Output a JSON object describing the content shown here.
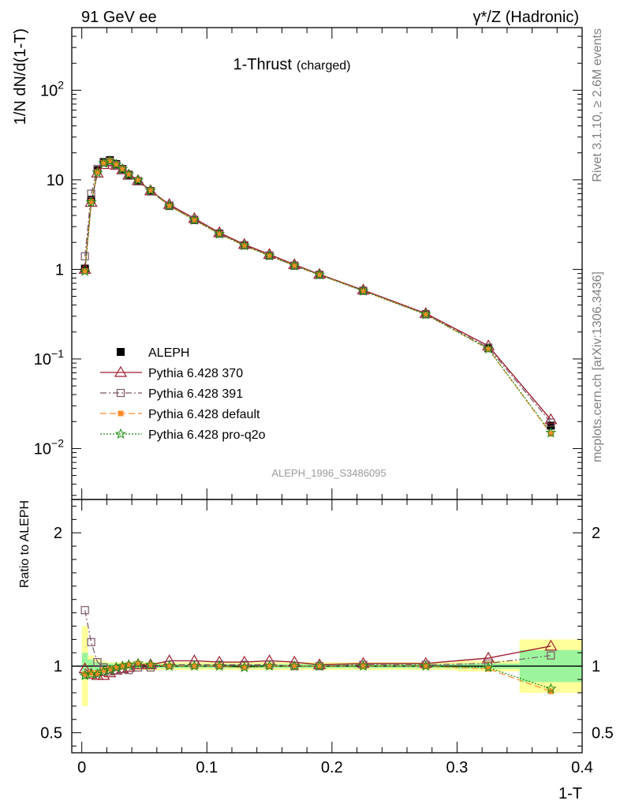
{
  "header": {
    "energy_label": "91 GeV ee",
    "process_label": "γ*/Z (Hadronic)"
  },
  "plot_title": {
    "main": "1-Thrust",
    "sub": "(charged)"
  },
  "side_labels": {
    "rivet": "Rivet 3.1.10, ≥ 2.6M events",
    "site": "mcplots.cern.ch [arXiv:1306.3436]"
  },
  "analysis_id": "ALEPH_1996_S3486095",
  "colors": {
    "data": "#000000",
    "p370": "#9e1f2f",
    "p391": "#7a5566",
    "default": "#ff8c2a",
    "proq2o": "#1e8c10",
    "band_inner": "#9cf59c",
    "band_outer": "#ffff9c"
  },
  "chart_data": [
    {
      "type": "line",
      "panel": "main",
      "xlabel": "1-T",
      "ylabel": "1/N dN/d(1-T)",
      "yscale": "log",
      "xlim": [
        -0.008,
        0.4
      ],
      "ylim": [
        0.0027,
        500
      ],
      "ytick_labels": [
        "10^-2",
        "10^-1",
        "1",
        "10",
        "10^2"
      ],
      "legend_position": "lower-left",
      "x": [
        0.0025,
        0.0075,
        0.0125,
        0.0175,
        0.0225,
        0.0275,
        0.0325,
        0.0375,
        0.045,
        0.055,
        0.07,
        0.09,
        0.11,
        0.13,
        0.15,
        0.17,
        0.19,
        0.225,
        0.275,
        0.325,
        0.375
      ],
      "series": [
        {
          "name": "ALEPH",
          "key": "data",
          "marker": "square",
          "values": [
            1.02,
            6.0,
            12.8,
            15.9,
            16.6,
            15.0,
            13.2,
            11.4,
            9.7,
            7.5,
            5.1,
            3.55,
            2.5,
            1.85,
            1.42,
            1.1,
            0.87,
            0.575,
            0.315,
            0.132,
            0.018
          ]
        },
        {
          "name": "Pythia 6.428 370",
          "key": "p370",
          "marker": "triangle",
          "values": [
            1.0,
            5.6,
            11.9,
            14.8,
            15.8,
            14.5,
            12.9,
            11.3,
            9.8,
            7.55,
            5.3,
            3.7,
            2.57,
            1.9,
            1.47,
            1.13,
            0.88,
            0.588,
            0.322,
            0.14,
            0.021
          ]
        },
        {
          "name": "Pythia 6.428 391",
          "key": "p391",
          "marker": "open-square",
          "values": [
            1.4,
            7.0,
            13.2,
            15.8,
            16.0,
            14.6,
            12.9,
            11.1,
            9.6,
            7.4,
            5.15,
            3.58,
            2.52,
            1.86,
            1.43,
            1.1,
            0.87,
            0.578,
            0.317,
            0.134,
            0.0195
          ]
        },
        {
          "name": "Pythia 6.428 default",
          "key": "default",
          "marker": "filled-square",
          "values": [
            0.96,
            5.7,
            12.2,
            15.5,
            16.3,
            14.9,
            13.2,
            11.5,
            9.9,
            7.6,
            5.12,
            3.56,
            2.49,
            1.84,
            1.42,
            1.1,
            0.87,
            0.574,
            0.314,
            0.129,
            0.0146
          ]
        },
        {
          "name": "Pythia 6.428 pro-q2o",
          "key": "proq2o",
          "marker": "star",
          "values": [
            0.95,
            5.6,
            12.0,
            15.3,
            16.1,
            14.8,
            13.2,
            11.5,
            9.9,
            7.6,
            5.12,
            3.55,
            2.49,
            1.84,
            1.42,
            1.1,
            0.87,
            0.574,
            0.314,
            0.13,
            0.015
          ]
        }
      ]
    },
    {
      "type": "line",
      "panel": "ratio",
      "xlabel": "1-T",
      "ylabel": "Ratio to ALEPH",
      "xlim": [
        -0.008,
        0.4
      ],
      "ylim": [
        0.35,
        2.25
      ],
      "ytick_labels": [
        "0.5",
        "1",
        "2"
      ],
      "xtick_labels": [
        "0",
        "0.1",
        "0.2",
        "0.3",
        "0.4"
      ],
      "x": [
        0.0025,
        0.0075,
        0.0125,
        0.0175,
        0.0225,
        0.0275,
        0.0325,
        0.0375,
        0.045,
        0.055,
        0.07,
        0.09,
        0.11,
        0.13,
        0.15,
        0.17,
        0.19,
        0.225,
        0.275,
        0.325,
        0.375
      ],
      "bands": {
        "bin_edges": [
          0,
          0.005,
          0.01,
          0.015,
          0.02,
          0.025,
          0.03,
          0.035,
          0.04,
          0.05,
          0.06,
          0.08,
          0.1,
          0.12,
          0.14,
          0.16,
          0.18,
          0.2,
          0.25,
          0.3,
          0.35,
          0.4
        ],
        "inner_halfwidth": [
          0.1,
          0.05,
          0.03,
          0.025,
          0.02,
          0.02,
          0.02,
          0.02,
          0.015,
          0.015,
          0.015,
          0.015,
          0.015,
          0.015,
          0.015,
          0.015,
          0.015,
          0.015,
          0.015,
          0.02,
          0.12
        ],
        "outer_halfwidth": [
          0.3,
          0.08,
          0.05,
          0.04,
          0.03,
          0.03,
          0.03,
          0.03,
          0.03,
          0.03,
          0.03,
          0.03,
          0.03,
          0.03,
          0.03,
          0.03,
          0.03,
          0.03,
          0.03,
          0.04,
          0.2
        ]
      },
      "series": [
        {
          "name": "Pythia 6.428 370",
          "key": "p370",
          "values": [
            0.98,
            0.94,
            0.93,
            0.93,
            0.95,
            0.97,
            0.98,
            0.99,
            1.01,
            1.01,
            1.04,
            1.04,
            1.03,
            1.03,
            1.04,
            1.03,
            1.01,
            1.02,
            1.02,
            1.06,
            1.15
          ]
        },
        {
          "name": "Pythia 6.428 391",
          "key": "p391",
          "values": [
            1.42,
            1.18,
            1.03,
            0.99,
            0.96,
            0.97,
            0.98,
            0.97,
            0.99,
            0.99,
            1.01,
            1.01,
            1.01,
            1.01,
            1.01,
            1.0,
            1.0,
            1.01,
            1.01,
            1.02,
            1.08
          ]
        },
        {
          "name": "Pythia 6.428 default",
          "key": "default",
          "values": [
            0.94,
            0.95,
            0.95,
            0.97,
            0.98,
            0.99,
            1.0,
            1.01,
            1.02,
            1.01,
            1.0,
            1.0,
            1.0,
            0.99,
            1.0,
            1.0,
            1.0,
            1.0,
            1.0,
            0.98,
            0.81
          ]
        },
        {
          "name": "Pythia 6.428 pro-q2o",
          "key": "proq2o",
          "values": [
            0.93,
            0.94,
            0.94,
            0.96,
            0.97,
            0.99,
            1.0,
            1.01,
            1.02,
            1.01,
            1.0,
            1.0,
            1.0,
            0.99,
            1.0,
            1.0,
            1.0,
            1.0,
            1.0,
            0.99,
            0.83
          ]
        }
      ]
    }
  ]
}
